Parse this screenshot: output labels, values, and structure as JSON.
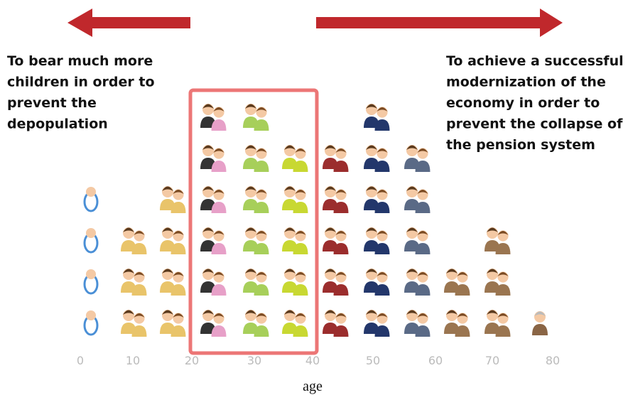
{
  "left_text": [
    "To bear much more",
    "children in order to",
    "prevent the",
    "depopulation"
  ],
  "right_text": [
    "To achieve a successful",
    "modernization of the",
    "economy in order to",
    "prevent the collapse of",
    "the pension system"
  ],
  "axis_ticks": [
    "0",
    "10",
    "20",
    "30",
    "40",
    "50",
    "60",
    "70",
    "80"
  ],
  "axis_title": "age",
  "columns": [
    {
      "kind": "baby",
      "count": 4,
      "color": "#4a8fd6"
    },
    {
      "kind": "couple",
      "count": 3,
      "color": "#e9c46a"
    },
    {
      "kind": "couple",
      "count": 4,
      "color": "#e9c46a"
    },
    {
      "kind": "couple",
      "count": 6,
      "color": "#333333"
    },
    {
      "kind": "couple",
      "count": 6,
      "color": "#a7cf5a"
    },
    {
      "kind": "couple",
      "count": 5,
      "color": "#c8d832"
    },
    {
      "kind": "couple",
      "count": 5,
      "color": "#9b2d2d"
    },
    {
      "kind": "couple",
      "count": 6,
      "color": "#23376b"
    },
    {
      "kind": "couple",
      "count": 5,
      "color": "#5a6a86"
    },
    {
      "kind": "couple",
      "count": 2,
      "color": "#9a7550"
    },
    {
      "kind": "couple",
      "count": 3,
      "color": "#9a7550"
    },
    {
      "kind": "single",
      "count": 1,
      "color": "#8a6545"
    }
  ]
}
